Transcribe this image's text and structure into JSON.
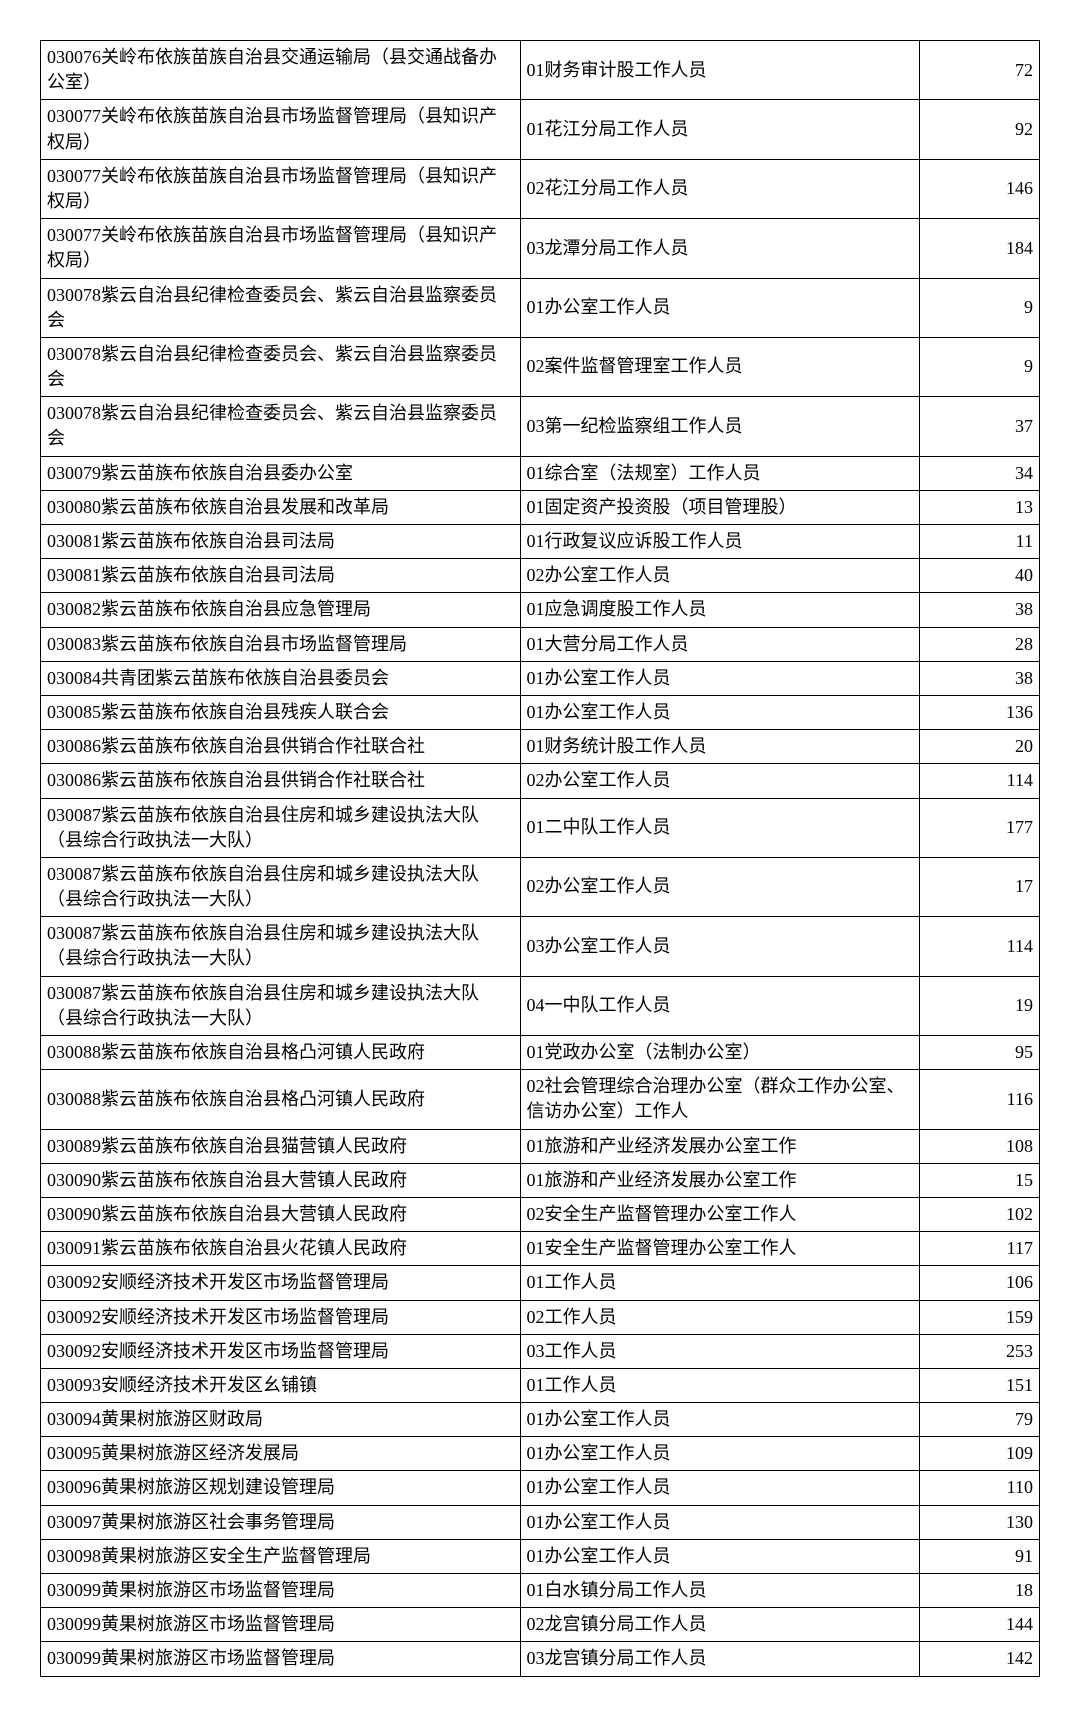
{
  "table": {
    "columns": [
      "org",
      "position",
      "count"
    ],
    "col_widths": [
      "48%",
      "40%",
      "12%"
    ],
    "col_align": [
      "left",
      "left",
      "right"
    ],
    "border_color": "#000000",
    "font_size": 18,
    "background_color": "#ffffff",
    "rows": [
      {
        "org": "030076关岭布依族苗族自治县交通运输局（县交通战备办公室）",
        "position": "01财务审计股工作人员",
        "count": "72"
      },
      {
        "org": "030077关岭布依族苗族自治县市场监督管理局（县知识产权局）",
        "position": "01花江分局工作人员",
        "count": "92"
      },
      {
        "org": "030077关岭布依族苗族自治县市场监督管理局（县知识产权局）",
        "position": "02花江分局工作人员",
        "count": "146"
      },
      {
        "org": "030077关岭布依族苗族自治县市场监督管理局（县知识产权局）",
        "position": "03龙潭分局工作人员",
        "count": "184"
      },
      {
        "org": "030078紫云自治县纪律检查委员会、紫云自治县监察委员会",
        "position": "01办公室工作人员",
        "count": "9"
      },
      {
        "org": "030078紫云自治县纪律检查委员会、紫云自治县监察委员会",
        "position": "02案件监督管理室工作人员",
        "count": "9"
      },
      {
        "org": "030078紫云自治县纪律检查委员会、紫云自治县监察委员会",
        "position": "03第一纪检监察组工作人员",
        "count": "37"
      },
      {
        "org": "030079紫云苗族布依族自治县委办公室",
        "position": "01综合室（法规室）工作人员",
        "count": "34"
      },
      {
        "org": "030080紫云苗族布依族自治县发展和改革局",
        "position": "01固定资产投资股（项目管理股）",
        "count": "13"
      },
      {
        "org": "030081紫云苗族布依族自治县司法局",
        "position": "01行政复议应诉股工作人员",
        "count": "11"
      },
      {
        "org": "030081紫云苗族布依族自治县司法局",
        "position": "02办公室工作人员",
        "count": "40"
      },
      {
        "org": "030082紫云苗族布依族自治县应急管理局",
        "position": "01应急调度股工作人员",
        "count": "38"
      },
      {
        "org": "030083紫云苗族布依族自治县市场监督管理局",
        "position": "01大营分局工作人员",
        "count": "28"
      },
      {
        "org": "030084共青团紫云苗族布依族自治县委员会",
        "position": "01办公室工作人员",
        "count": "38"
      },
      {
        "org": "030085紫云苗族布依族自治县残疾人联合会",
        "position": "01办公室工作人员",
        "count": "136"
      },
      {
        "org": "030086紫云苗族布依族自治县供销合作社联合社",
        "position": "01财务统计股工作人员",
        "count": "20"
      },
      {
        "org": "030086紫云苗族布依族自治县供销合作社联合社",
        "position": "02办公室工作人员",
        "count": "114"
      },
      {
        "org": "030087紫云苗族布依族自治县住房和城乡建设执法大队（县综合行政执法一大队）",
        "position": "01二中队工作人员",
        "count": "177"
      },
      {
        "org": "030087紫云苗族布依族自治县住房和城乡建设执法大队（县综合行政执法一大队）",
        "position": "02办公室工作人员",
        "count": "17"
      },
      {
        "org": "030087紫云苗族布依族自治县住房和城乡建设执法大队（县综合行政执法一大队）",
        "position": "03办公室工作人员",
        "count": "114"
      },
      {
        "org": "030087紫云苗族布依族自治县住房和城乡建设执法大队（县综合行政执法一大队）",
        "position": "04一中队工作人员",
        "count": "19"
      },
      {
        "org": "030088紫云苗族布依族自治县格凸河镇人民政府",
        "position": "01党政办公室（法制办公室）",
        "count": "95"
      },
      {
        "org": "030088紫云苗族布依族自治县格凸河镇人民政府",
        "position": "02社会管理综合治理办公室（群众工作办公室、信访办公室）工作人",
        "count": "116"
      },
      {
        "org": "030089紫云苗族布依族自治县猫营镇人民政府",
        "position": "01旅游和产业经济发展办公室工作",
        "count": "108"
      },
      {
        "org": "030090紫云苗族布依族自治县大营镇人民政府",
        "position": "01旅游和产业经济发展办公室工作",
        "count": "15"
      },
      {
        "org": "030090紫云苗族布依族自治县大营镇人民政府",
        "position": "02安全生产监督管理办公室工作人",
        "count": "102"
      },
      {
        "org": "030091紫云苗族布依族自治县火花镇人民政府",
        "position": "01安全生产监督管理办公室工作人",
        "count": "117"
      },
      {
        "org": "030092安顺经济技术开发区市场监督管理局",
        "position": "01工作人员",
        "count": "106"
      },
      {
        "org": "030092安顺经济技术开发区市场监督管理局",
        "position": "02工作人员",
        "count": "159"
      },
      {
        "org": "030092安顺经济技术开发区市场监督管理局",
        "position": "03工作人员",
        "count": "253"
      },
      {
        "org": "030093安顺经济技术开发区幺铺镇",
        "position": "01工作人员",
        "count": "151"
      },
      {
        "org": "030094黄果树旅游区财政局",
        "position": "01办公室工作人员",
        "count": "79"
      },
      {
        "org": "030095黄果树旅游区经济发展局",
        "position": "01办公室工作人员",
        "count": "109"
      },
      {
        "org": "030096黄果树旅游区规划建设管理局",
        "position": "01办公室工作人员",
        "count": "110"
      },
      {
        "org": "030097黄果树旅游区社会事务管理局",
        "position": "01办公室工作人员",
        "count": "130"
      },
      {
        "org": "030098黄果树旅游区安全生产监督管理局",
        "position": "01办公室工作人员",
        "count": "91"
      },
      {
        "org": "030099黄果树旅游区市场监督管理局",
        "position": "01白水镇分局工作人员",
        "count": "18"
      },
      {
        "org": "030099黄果树旅游区市场监督管理局",
        "position": "02龙宫镇分局工作人员",
        "count": "144"
      },
      {
        "org": "030099黄果树旅游区市场监督管理局",
        "position": "03龙宫镇分局工作人员",
        "count": "142"
      }
    ]
  }
}
